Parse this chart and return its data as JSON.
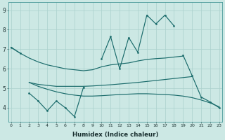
{
  "xlabel": "Humidex (Indice chaleur)",
  "x": [
    0,
    1,
    2,
    3,
    4,
    5,
    6,
    7,
    8,
    9,
    10,
    11,
    12,
    13,
    14,
    15,
    16,
    17,
    18,
    19,
    20,
    21,
    22,
    23
  ],
  "line_jagged_top": [
    7.1,
    6.8,
    null,
    null,
    null,
    null,
    null,
    null,
    null,
    null,
    6.5,
    7.65,
    6.0,
    7.6,
    6.85,
    8.75,
    8.3,
    8.75,
    8.2,
    6.7,
    null,
    null,
    null,
    null
  ],
  "line_smooth_top": [
    7.1,
    6.8,
    6.55,
    6.35,
    6.2,
    6.1,
    6.0,
    5.95,
    5.9,
    5.95,
    6.1,
    6.2,
    6.25,
    6.3,
    6.4,
    6.48,
    6.52,
    6.55,
    6.6,
    6.65,
    null,
    null,
    null,
    null
  ],
  "line_smooth_top2": [
    null,
    null,
    5.3,
    5.2,
    5.15,
    5.1,
    5.1,
    5.1,
    5.1,
    5.12,
    5.15,
    5.18,
    5.22,
    5.26,
    5.3,
    5.35,
    5.4,
    5.45,
    5.5,
    5.55,
    5.6,
    null,
    null,
    null
  ],
  "line_smooth_bot": [
    null,
    null,
    5.3,
    5.1,
    4.95,
    4.82,
    4.72,
    4.65,
    4.6,
    4.6,
    4.62,
    4.65,
    4.68,
    4.7,
    4.72,
    4.72,
    4.7,
    4.68,
    4.65,
    4.6,
    4.52,
    4.4,
    4.25,
    4.05
  ],
  "line_jagged_bot": [
    null,
    null,
    4.75,
    4.35,
    3.85,
    4.35,
    4.0,
    3.55,
    5.05,
    null,
    null,
    null,
    null,
    null,
    null,
    null,
    null,
    null,
    null,
    null,
    null,
    null,
    null,
    null
  ],
  "line_end": [
    null,
    null,
    null,
    null,
    null,
    null,
    null,
    null,
    null,
    null,
    null,
    null,
    null,
    null,
    null,
    null,
    null,
    null,
    null,
    6.7,
    5.65,
    4.55,
    4.3,
    4.0
  ],
  "bg_color": "#cce8e4",
  "line_color": "#1a6b6b",
  "grid_color": "#aad0cc",
  "ylim": [
    3.3,
    9.4
  ],
  "yticks": [
    4,
    5,
    6,
    7,
    8,
    9
  ],
  "xlim": [
    -0.3,
    23.3
  ]
}
